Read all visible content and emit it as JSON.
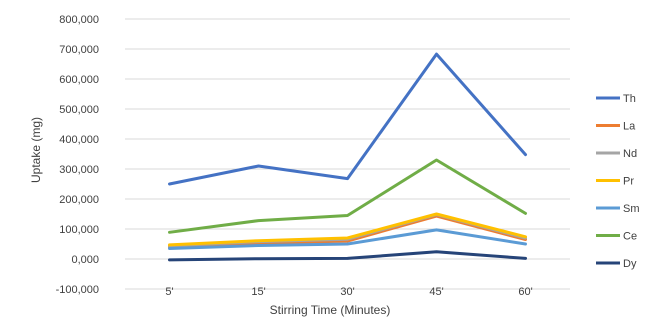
{
  "chart_data": {
    "type": "line",
    "title": "",
    "xlabel": "Stirring Time (Minutes)",
    "ylabel": "Uptake (mg)",
    "categories": [
      "5'",
      "15'",
      "30'",
      "45'",
      "60'"
    ],
    "ylim": [
      -100000,
      800000
    ],
    "yticks": [
      -100000,
      0,
      100000,
      200000,
      300000,
      400000,
      500000,
      600000,
      700000,
      800000
    ],
    "ytick_labels": [
      "-100,000",
      "0,000",
      "100,000",
      "200,000",
      "300,000",
      "400,000",
      "500,000",
      "600,000",
      "700,000",
      "800,000"
    ],
    "grid": true,
    "legend_position": "right",
    "series": [
      {
        "name": "Th",
        "color": "#4472C4",
        "values": [
          250000,
          310000,
          268000,
          683000,
          348000
        ]
      },
      {
        "name": "La",
        "color": "#ED7D31",
        "values": [
          40000,
          52000,
          60000,
          143000,
          65000
        ]
      },
      {
        "name": "Nd",
        "color": "#A5A5A5",
        "values": [
          44000,
          58000,
          66000,
          148000,
          70000
        ]
      },
      {
        "name": "Pr",
        "color": "#FFC000",
        "values": [
          47000,
          61000,
          70000,
          150000,
          74000
        ]
      },
      {
        "name": "Sm",
        "color": "#5B9BD5",
        "values": [
          35000,
          45000,
          50000,
          97000,
          50000
        ]
      },
      {
        "name": "Ce",
        "color": "#70AD47",
        "values": [
          89000,
          128000,
          145000,
          330000,
          152000
        ]
      },
      {
        "name": "Dy",
        "color": "#264478",
        "values": [
          -3000,
          1000,
          2000,
          24000,
          2000
        ]
      }
    ]
  }
}
